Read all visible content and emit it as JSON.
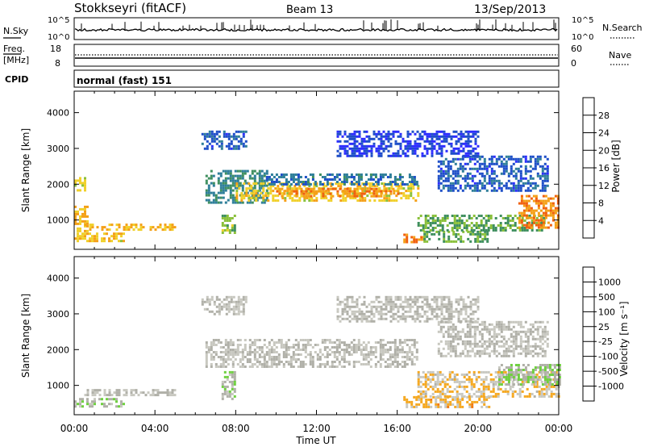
{
  "header": {
    "station": "Stokkseyri (fitACF)",
    "beam": "Beam 13",
    "date": "13/Sep/2013"
  },
  "nsky_panel": {
    "label": "N.Sky",
    "left_ticks": [
      "10^5",
      "10^0"
    ],
    "right_ticks": [
      "10^5",
      "10^0"
    ],
    "right_label": "N.Search"
  },
  "freq_panel": {
    "label_line1": "Freq.",
    "label_line2": "[MHz]",
    "left_ticks": [
      "18",
      "8"
    ],
    "right_ticks": [
      "60",
      "0"
    ],
    "right_label": "Nave"
  },
  "cpid_panel": {
    "label": "CPID",
    "text": "normal (fast) 151"
  },
  "colors": {
    "power": [
      "#2d2dff",
      "#1f4fc8",
      "#2f7f9a",
      "#3f8f5f",
      "#8ac03a",
      "#f0d02a",
      "#f4a018",
      "#f06010",
      "#e82010"
    ],
    "velocity": [
      "#e01818",
      "#f04010",
      "#f07a10",
      "#f5a820",
      "#c8c8c0",
      "#b0b0a8",
      "#6fd040",
      "#3a9a48",
      "#2a6a90",
      "#2040b0"
    ]
  },
  "chart_data": [
    {
      "type": "heatmap",
      "name": "power",
      "ylabel": "Slant Range [km]",
      "xlabel": "",
      "x_ticks": [
        "00:00",
        "04:00",
        "08:00",
        "12:00",
        "16:00",
        "20:00",
        "00:00"
      ],
      "xlim_hours": [
        0,
        24
      ],
      "ylim": [
        180,
        4600
      ],
      "y_ticks": [
        1000,
        2000,
        3000,
        4000
      ],
      "colorbar": {
        "label": "Power [dB]",
        "ticks": [
          "28",
          "24",
          "20",
          "16",
          "12",
          "8",
          "4"
        ],
        "range": [
          0,
          32
        ]
      },
      "regions": [
        {
          "start_h": 6.3,
          "end_h": 8.5,
          "range_start": 3000,
          "range_end": 3500,
          "level": 6
        },
        {
          "start_h": 6.5,
          "end_h": 9.5,
          "range_start": 1500,
          "range_end": 2400,
          "level": 10
        },
        {
          "start_h": 7.3,
          "end_h": 8.0,
          "range_start": 650,
          "range_end": 1150,
          "level": 16
        },
        {
          "start_h": 8.0,
          "end_h": 17.0,
          "range_start": 1550,
          "range_end": 2050,
          "level": 20
        },
        {
          "start_h": 10.0,
          "end_h": 16.0,
          "range_start": 1650,
          "range_end": 1900,
          "level": 24
        },
        {
          "start_h": 9.5,
          "end_h": 17.0,
          "range_start": 2000,
          "range_end": 2300,
          "level": 8
        },
        {
          "start_h": 16.3,
          "end_h": 17.3,
          "range_start": 380,
          "range_end": 620,
          "level": 24
        },
        {
          "start_h": 17.3,
          "end_h": 20.5,
          "range_start": 400,
          "range_end": 700,
          "level": 14
        },
        {
          "start_h": 17.0,
          "end_h": 23.3,
          "range_start": 700,
          "range_end": 1150,
          "level": 14
        },
        {
          "start_h": 22.0,
          "end_h": 24.0,
          "range_start": 800,
          "range_end": 1700,
          "level": 24
        },
        {
          "start_h": 0.0,
          "end_h": 0.6,
          "range_start": 700,
          "range_end": 1400,
          "level": 22
        },
        {
          "start_h": 0.5,
          "end_h": 5.0,
          "range_start": 750,
          "range_end": 900,
          "level": 22
        },
        {
          "start_h": 0.0,
          "end_h": 2.5,
          "range_start": 380,
          "range_end": 650,
          "level": 20
        },
        {
          "start_h": 0.0,
          "end_h": 0.5,
          "range_start": 1800,
          "range_end": 2200,
          "level": 20
        },
        {
          "start_h": 18.0,
          "end_h": 23.5,
          "range_start": 1800,
          "range_end": 2800,
          "level": 6
        },
        {
          "start_h": 13.0,
          "end_h": 20.0,
          "range_start": 2800,
          "range_end": 3500,
          "level": 4
        }
      ]
    },
    {
      "type": "heatmap",
      "name": "velocity",
      "ylabel": "Slant Range [km]",
      "xlabel": "Time UT",
      "x_ticks": [
        "00:00",
        "04:00",
        "08:00",
        "12:00",
        "16:00",
        "20:00",
        "00:00"
      ],
      "xlim_hours": [
        0,
        24
      ],
      "ylim": [
        180,
        4600
      ],
      "y_ticks": [
        1000,
        2000,
        3000,
        4000
      ],
      "colorbar": {
        "label": "Velocity [m s⁻¹]",
        "ticks": [
          "1000",
          "500",
          "100",
          "25",
          "-25",
          "-100",
          "-500",
          "-1000"
        ],
        "range": [
          -1250,
          1250
        ]
      },
      "regions": [
        {
          "start_h": 6.3,
          "end_h": 8.5,
          "range_start": 3000,
          "range_end": 3500,
          "level": 0
        },
        {
          "start_h": 6.5,
          "end_h": 17.0,
          "range_start": 1500,
          "range_end": 2300,
          "level": 0
        },
        {
          "start_h": 7.3,
          "end_h": 8.0,
          "range_start": 650,
          "range_end": 1400,
          "level": 150
        },
        {
          "start_h": 16.3,
          "end_h": 20.5,
          "range_start": 380,
          "range_end": 700,
          "level": -300
        },
        {
          "start_h": 17.0,
          "end_h": 24.0,
          "range_start": 700,
          "range_end": 1400,
          "level": -200
        },
        {
          "start_h": 21.0,
          "end_h": 24.0,
          "range_start": 1000,
          "range_end": 1600,
          "level": 200
        },
        {
          "start_h": 0.5,
          "end_h": 5.0,
          "range_start": 750,
          "range_end": 900,
          "level": 0
        },
        {
          "start_h": 0.0,
          "end_h": 2.5,
          "range_start": 380,
          "range_end": 650,
          "level": 150
        },
        {
          "start_h": 18.0,
          "end_h": 23.5,
          "range_start": 1800,
          "range_end": 2800,
          "level": 0
        },
        {
          "start_h": 13.0,
          "end_h": 20.0,
          "range_start": 2800,
          "range_end": 3500,
          "level": 0
        }
      ]
    }
  ]
}
